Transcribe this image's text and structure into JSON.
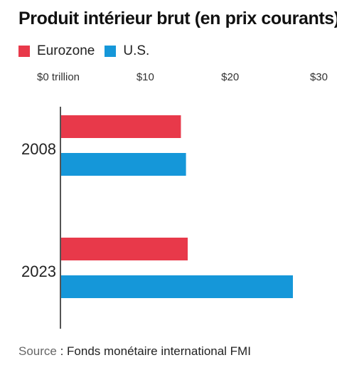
{
  "chart_data": {
    "type": "bar",
    "orientation": "horizontal",
    "title": "Produit intérieur brut (en prix courants)",
    "categories": [
      "2008",
      "2023"
    ],
    "series": [
      {
        "name": "Eurozone",
        "color": "#e8394a",
        "values": [
          14.2,
          15.0
        ]
      },
      {
        "name": "U.S.",
        "color": "#1597d9",
        "values": [
          14.8,
          27.4
        ]
      }
    ],
    "x_ticks": [
      {
        "value": 0,
        "label": "$0 trillion"
      },
      {
        "value": 10,
        "label": "$10"
      },
      {
        "value": 20,
        "label": "$20"
      },
      {
        "value": 30,
        "label": "$30"
      }
    ],
    "xlim": [
      0,
      30
    ],
    "grid": false,
    "legend_position": "top-left"
  },
  "source": {
    "prefix": "Source",
    "text": " : Fonds monétaire international FMI"
  }
}
